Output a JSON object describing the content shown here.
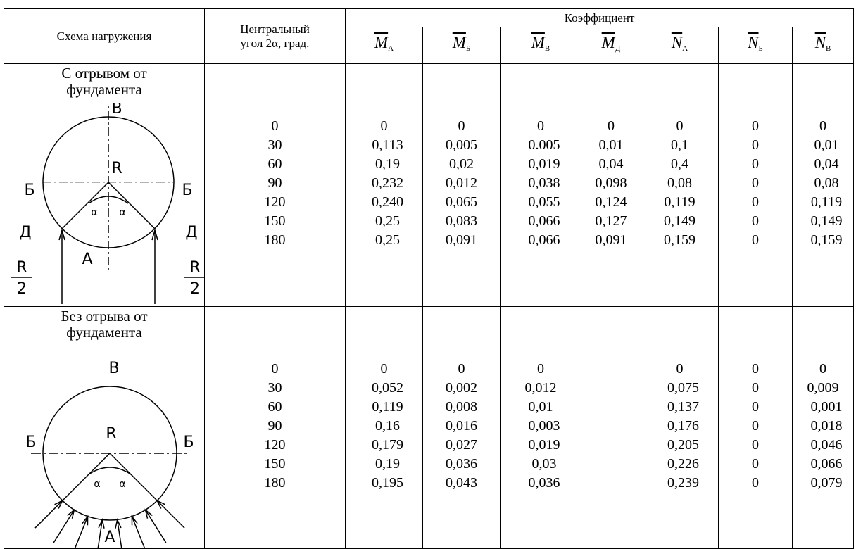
{
  "table": {
    "header": {
      "scheme": "Схема нагружения",
      "angle": "Центральный угол 2α, град.",
      "coef": "Коэффициент",
      "columns": [
        {
          "symbol": "M",
          "sub": "А"
        },
        {
          "symbol": "M",
          "sub": "Б"
        },
        {
          "symbol": "M",
          "sub": "В"
        },
        {
          "symbol": "M",
          "sub": "Д"
        },
        {
          "symbol": "N",
          "sub": "А"
        },
        {
          "symbol": "N",
          "sub": "Б"
        },
        {
          "symbol": "N",
          "sub": "В"
        }
      ]
    },
    "rows": [
      {
        "title": "С отрывом от фундамента",
        "labels": {
          "top": "В",
          "left": "Б",
          "right": "Б",
          "radius": "R",
          "left_point": "Д",
          "right_point": "Д",
          "alpha_left": "α",
          "alpha_right": "α",
          "bottom": "А",
          "load_num_left": "R",
          "load_den_left": "2",
          "load_num_right": "R",
          "load_den_right": "2"
        },
        "angles": [
          0,
          30,
          60,
          90,
          120,
          150,
          180
        ],
        "values": [
          [
            "0",
            "–0,113",
            "–0,19",
            "–0,232",
            "–0,240",
            "–0,25",
            "–0,25"
          ],
          [
            "0",
            "0,005",
            "0,02",
            "0,012",
            "0,065",
            "0,083",
            "0,091"
          ],
          [
            "0",
            "–0.005",
            "–0,019",
            "–0,038",
            "–0,055",
            "–0,066",
            "–0,066"
          ],
          [
            "0",
            "0,01",
            "0,04",
            "0,098",
            "0,124",
            "0,127",
            "0,091"
          ],
          [
            "0",
            "0,1",
            "0,4",
            "0,08",
            "0,119",
            "0,149",
            "0,159"
          ],
          [
            "0",
            "0",
            "0",
            "0",
            "0",
            "0",
            "0"
          ],
          [
            "0",
            "–0,01",
            "–0,04",
            "–0,08",
            "–0,119",
            "–0,149",
            "–0,159"
          ]
        ]
      },
      {
        "title": "Без отрыва от фундамента",
        "labels": {
          "top": "В",
          "left": "Б",
          "right": "Б",
          "radius": "R",
          "alpha_left": "α",
          "alpha_right": "α",
          "bottom": "А"
        },
        "angles": [
          0,
          30,
          60,
          90,
          120,
          150,
          180
        ],
        "values": [
          [
            "0",
            "–0,052",
            "–0,119",
            "–0,16",
            "–0,179",
            "–0,19",
            "–0,195"
          ],
          [
            "0",
            "0,002",
            "0,008",
            "0,016",
            "0,027",
            "0,036",
            "0,043"
          ],
          [
            "0",
            "0,012",
            "0,01",
            "–0,003",
            "–0,019",
            "–0,03",
            "–0,036"
          ],
          [
            "—",
            "—",
            "—",
            "—",
            "—",
            "—",
            "—"
          ],
          [
            "0",
            "–0,075",
            "–0,137",
            "–0,176",
            "–0,205",
            "–0,226",
            "–0,239"
          ],
          [
            "0",
            "0",
            "0",
            "0",
            "0",
            "0",
            "0"
          ],
          [
            "0",
            "0,009",
            "–0,001",
            "–0,018",
            "–0,046",
            "–0,066",
            "–0,079"
          ]
        ]
      }
    ]
  }
}
